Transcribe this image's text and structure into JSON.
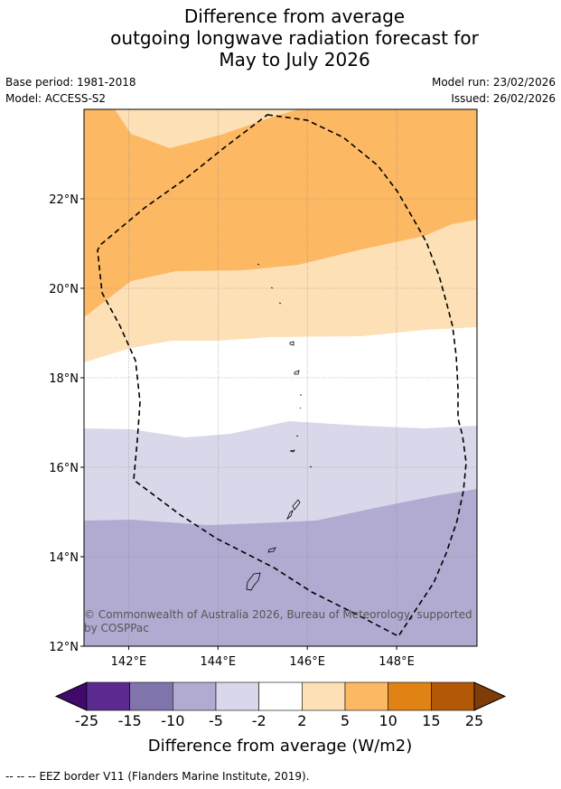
{
  "title": {
    "line1": "Difference from average",
    "line2": "outgoing longwave radiation forecast for",
    "line3": "May to July 2026"
  },
  "meta": {
    "base_period": "Base period: 1981-2018",
    "model": "Model: ACCESS-S2",
    "model_run": "Model run: 23/02/2026",
    "issued": "Issued: 26/02/2026"
  },
  "map": {
    "lat_labels": [
      "22°N",
      "20°N",
      "18°N",
      "16°N",
      "14°N",
      "12°N"
    ],
    "lon_labels": [
      "142°E",
      "144°E",
      "146°E",
      "148°E"
    ],
    "attribution_line1": "© Commonwealth of Australia 2026, Bureau of Meteorology, supported",
    "attribution_line2": "by COSPPac",
    "lat_range": [
      12,
      24
    ],
    "lon_range": [
      141,
      149.8
    ]
  },
  "colorbar": {
    "tick_labels": [
      "-25",
      "-15",
      "-10",
      "-5",
      "-2",
      "2",
      "5",
      "10",
      "15",
      "25"
    ],
    "label": "Difference from average (W/m2)",
    "colors": [
      "#3f0a6b",
      "#5b2a91",
      "#8174ad",
      "#b1abd1",
      "#d8d8ea",
      "#ffffff",
      "#fee0b6",
      "#fdb863",
      "#e08214",
      "#b35806",
      "#7f3b08"
    ]
  },
  "footer": {
    "legend_symbol": "-- -- --",
    "legend_text": "EEZ border V11 (Flanders Marine Institute, 2019)."
  }
}
